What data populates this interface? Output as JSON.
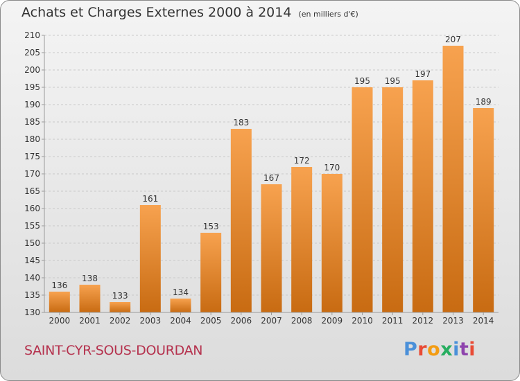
{
  "header": {
    "title": "Achats et Charges Externes 2000 à 2014",
    "unit": "(en milliers d'€)"
  },
  "footer": {
    "city": "SAINT-CYR-SOUS-DOURDAN",
    "logo_text": "Proxiti",
    "logo_colors": [
      "#4a90d9",
      "#e94b35",
      "#f39c12",
      "#27ae60",
      "#4a90d9",
      "#8e44ad",
      "#e94b35"
    ]
  },
  "chart_data": {
    "type": "bar",
    "title": "Achats et Charges Externes 2000 à 2014",
    "subtitle": "(en milliers d'€)",
    "xlabel": "",
    "ylabel": "",
    "categories": [
      "2000",
      "2001",
      "2002",
      "2003",
      "2004",
      "2005",
      "2006",
      "2007",
      "2008",
      "2009",
      "2010",
      "2011",
      "2012",
      "2013",
      "2014"
    ],
    "values": [
      136,
      138,
      133,
      161,
      134,
      153,
      183,
      167,
      172,
      170,
      195,
      195,
      197,
      207,
      189
    ],
    "ylim": [
      130,
      210
    ],
    "yticks": [
      130,
      135,
      140,
      145,
      150,
      155,
      160,
      165,
      170,
      175,
      180,
      185,
      190,
      195,
      200,
      205,
      210
    ],
    "grid": true,
    "bar_color_top": "#f7a24f",
    "bar_color_bottom": "#c86b12"
  }
}
